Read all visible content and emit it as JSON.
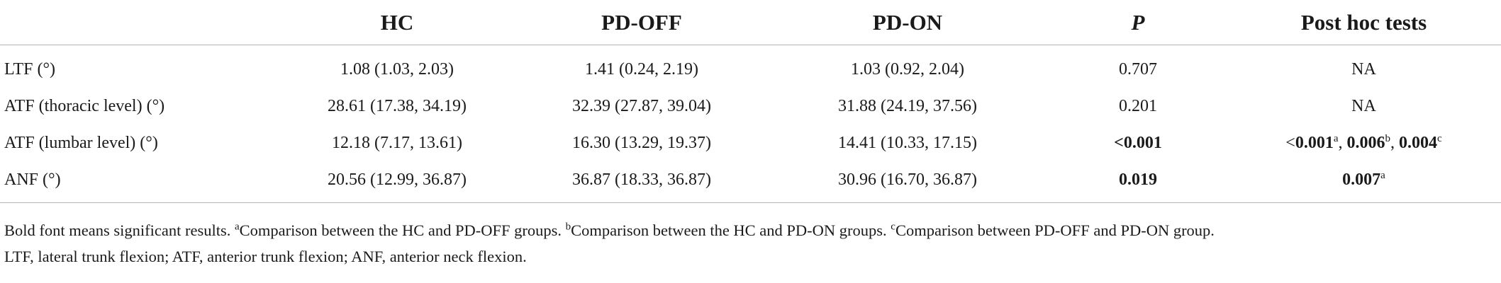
{
  "table": {
    "headers": [
      "",
      "HC",
      "PD-OFF",
      "PD-ON",
      "P",
      "Post hoc tests"
    ],
    "rows": [
      {
        "label": "LTF (°)",
        "hc": "1.08 (1.03, 2.03)",
        "pd_off": "1.41 (0.24, 2.19)",
        "pd_on": "1.03 (0.92, 2.04)",
        "p": "0.707",
        "posthoc": "NA"
      },
      {
        "label": "ATF (thoracic level) (°)",
        "hc": "28.61 (17.38, 34.19)",
        "pd_off": "32.39 (27.87, 39.04)",
        "pd_on": "31.88 (24.19, 37.56)",
        "p": "0.201",
        "posthoc": "NA"
      },
      {
        "label": "ATF (lumbar level) (°)",
        "hc": "12.18 (7.17, 13.61)",
        "pd_off": "16.30 (13.29, 19.37)",
        "pd_on": "14.41 (10.33, 17.15)",
        "p": "<0.001",
        "posthoc_parts": [
          {
            "value": "<",
            "sup": ""
          },
          {
            "value": "0.001",
            "sup": "a"
          },
          {
            "value": ", ",
            "sup": ""
          },
          {
            "value": "0.006",
            "sup": "b"
          },
          {
            "value": ", ",
            "sup": ""
          },
          {
            "value": "0.004",
            "sup": "c"
          }
        ]
      },
      {
        "label": "ANF (°)",
        "hc": "20.56 (12.99, 36.87)",
        "pd_off": "36.87 (18.33, 36.87)",
        "pd_on": "30.96 (16.70, 36.87)",
        "p": "0.019",
        "posthoc_value": "0.007",
        "posthoc_sup": "a"
      }
    ]
  },
  "footnote": {
    "line1_start": "Bold font means significant results. ",
    "sup_a": "a",
    "text_a": "Comparison between the HC and PD-OFF groups. ",
    "sup_b": "b",
    "text_b": "Comparison between the HC and PD-ON groups. ",
    "sup_c": "c",
    "text_c": "Comparison between PD-OFF and PD-ON group.",
    "line2": "LTF, lateral trunk flexion; ATF, anterior trunk flexion; ANF, anterior neck flexion."
  }
}
